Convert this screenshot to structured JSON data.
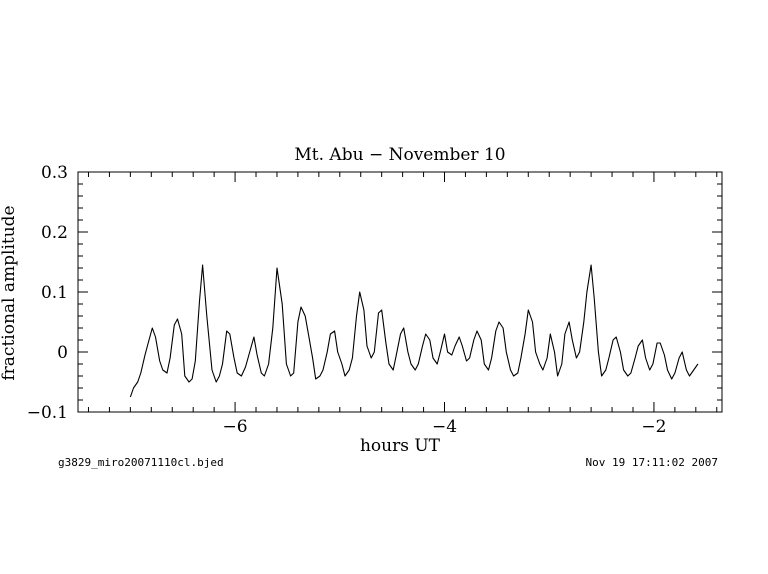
{
  "chart_data": {
    "type": "line",
    "title": "Mt. Abu − November 10",
    "xlabel": "hours UT",
    "ylabel": "fractional amplitude",
    "xlim": [
      -7.5,
      -1.35
    ],
    "ylim": [
      -0.1,
      0.3
    ],
    "xticks": [
      -6,
      -4,
      -2
    ],
    "xtick_labels": [
      "−6",
      "−4",
      "−2"
    ],
    "yticks": [
      -0.1,
      0,
      0.1,
      0.2,
      0.3
    ],
    "ytick_labels": [
      "−0.1",
      "0",
      "0.1",
      "0.2",
      "0.3"
    ],
    "grid": false,
    "series": [
      {
        "x": [
          -7.0,
          -6.97,
          -6.93,
          -6.9,
          -6.86,
          -6.83,
          -6.79,
          -6.76,
          -6.72,
          -6.69,
          -6.65,
          -6.62,
          -6.58,
          -6.55,
          -6.51,
          -6.48,
          -6.44,
          -6.41,
          -6.38,
          -6.34,
          -6.31,
          -6.27,
          -6.22,
          -6.18,
          -6.15,
          -6.12,
          -6.08,
          -6.05,
          -6.01,
          -5.98,
          -5.94,
          -5.9,
          -5.86,
          -5.82,
          -5.79,
          -5.75,
          -5.72,
          -5.68,
          -5.64,
          -5.6,
          -5.55,
          -5.51,
          -5.47,
          -5.44,
          -5.4,
          -5.37,
          -5.33,
          -5.3,
          -5.26,
          -5.23,
          -5.19,
          -5.16,
          -5.12,
          -5.09,
          -5.05,
          -5.02,
          -4.98,
          -4.95,
          -4.91,
          -4.88,
          -4.84,
          -4.81,
          -4.77,
          -4.74,
          -4.7,
          -4.67,
          -4.63,
          -4.6,
          -4.56,
          -4.53,
          -4.49,
          -4.46,
          -4.42,
          -4.39,
          -4.35,
          -4.32,
          -4.28,
          -4.25,
          -4.21,
          -4.18,
          -4.14,
          -4.11,
          -4.07,
          -4.04,
          -4.0,
          -3.97,
          -3.93,
          -3.9,
          -3.86,
          -3.83,
          -3.79,
          -3.76,
          -3.72,
          -3.69,
          -3.65,
          -3.62,
          -3.58,
          -3.55,
          -3.51,
          -3.48,
          -3.44,
          -3.41,
          -3.37,
          -3.34,
          -3.3,
          -3.27,
          -3.23,
          -3.2,
          -3.16,
          -3.13,
          -3.09,
          -3.06,
          -3.02,
          -2.99,
          -2.95,
          -2.92,
          -2.88,
          -2.85,
          -2.81,
          -2.78,
          -2.74,
          -2.71,
          -2.67,
          -2.64,
          -2.6,
          -2.57,
          -2.53,
          -2.5,
          -2.46,
          -2.43,
          -2.39,
          -2.36,
          -2.32,
          -2.29,
          -2.25,
          -2.22,
          -2.18,
          -2.15,
          -2.11,
          -2.08,
          -2.04,
          -2.01,
          -1.97,
          -1.94,
          -1.9,
          -1.87,
          -1.83,
          -1.8,
          -1.76,
          -1.73,
          -1.69,
          -1.66,
          -1.62,
          -1.58
        ],
        "y": [
          -0.075,
          -0.06,
          -0.05,
          -0.035,
          -0.005,
          0.015,
          0.04,
          0.025,
          -0.015,
          -0.03,
          -0.035,
          -0.01,
          0.045,
          0.055,
          0.03,
          -0.04,
          -0.05,
          -0.045,
          -0.015,
          0.085,
          0.145,
          0.06,
          -0.03,
          -0.05,
          -0.04,
          -0.02,
          0.035,
          0.03,
          -0.01,
          -0.035,
          -0.04,
          -0.025,
          0.0,
          0.025,
          -0.005,
          -0.035,
          -0.04,
          -0.02,
          0.04,
          0.14,
          0.08,
          -0.02,
          -0.04,
          -0.035,
          0.05,
          0.075,
          0.06,
          0.03,
          -0.01,
          -0.045,
          -0.04,
          -0.03,
          0.0,
          0.03,
          0.035,
          0.0,
          -0.02,
          -0.04,
          -0.03,
          -0.01,
          0.06,
          0.1,
          0.07,
          0.01,
          -0.01,
          0.0,
          0.065,
          0.07,
          0.015,
          -0.02,
          -0.03,
          -0.005,
          0.03,
          0.04,
          0.0,
          -0.02,
          -0.03,
          -0.02,
          0.01,
          0.03,
          0.02,
          -0.01,
          -0.02,
          0.0,
          0.03,
          0.0,
          -0.005,
          0.01,
          0.025,
          0.01,
          -0.015,
          -0.01,
          0.02,
          0.035,
          0.02,
          -0.02,
          -0.03,
          -0.01,
          0.035,
          0.05,
          0.04,
          0.0,
          -0.03,
          -0.04,
          -0.035,
          -0.01,
          0.03,
          0.07,
          0.05,
          0.0,
          -0.02,
          -0.03,
          -0.01,
          0.03,
          0.0,
          -0.04,
          -0.02,
          0.03,
          0.05,
          0.02,
          -0.01,
          0.0,
          0.05,
          0.1,
          0.145,
          0.09,
          0.0,
          -0.04,
          -0.03,
          -0.01,
          0.02,
          0.025,
          0.0,
          -0.03,
          -0.04,
          -0.035,
          -0.01,
          0.01,
          0.02,
          -0.01,
          -0.03,
          -0.02,
          0.015,
          0.015,
          -0.005,
          -0.03,
          -0.045,
          -0.035,
          -0.01,
          0.0,
          -0.03,
          -0.04,
          -0.03,
          -0.02
        ]
      }
    ]
  },
  "footer": {
    "filename": "g3829_miro20071110cl.bjed",
    "timestamp": "Nov 19 17:11:02 2007"
  }
}
